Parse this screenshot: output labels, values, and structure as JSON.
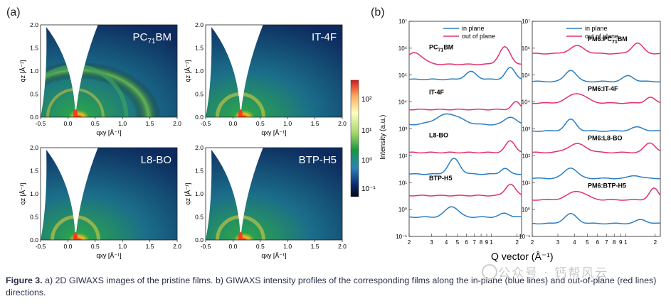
{
  "panel_a": {
    "label": "(a)",
    "images": [
      {
        "sample": "PC71BM",
        "label_html": "PC<sub>71</sub>BM"
      },
      {
        "sample": "IT-4F"
      },
      {
        "sample": "L8-BO"
      },
      {
        "sample": "BTP-H5"
      }
    ],
    "x_ticks": [
      "-0.5",
      "0.0",
      "0.5",
      "1.0",
      "1.5",
      "2.0"
    ],
    "y_ticks": [
      "0.0",
      "0.5",
      "1.0",
      "1.5",
      "2.0"
    ],
    "xlabel": "qxy [Å⁻¹]",
    "ylabel": "qz [Å⁻¹]",
    "colorbar_ticks": [
      "10²",
      "10¹",
      "10⁰",
      "10⁻¹"
    ],
    "colorbar_colors": [
      "#d7191c",
      "#fdae61",
      "#ffffbf",
      "#a6d96a",
      "#1a9641",
      "#2b83ba",
      "#0b2a6f",
      "#050515"
    ]
  },
  "panel_b": {
    "label": "(b)",
    "chart_data": [
      {
        "type": "line",
        "xlabel": "Q vector (Å⁻¹)",
        "ylabel": "Intensity (a.u.)",
        "x_ticks": [
          "2",
          "3",
          "4",
          "5",
          "6",
          "7",
          "8",
          "9",
          "1",
          "2"
        ],
        "y_ticks": [
          "10⁷",
          "10⁶",
          "10⁵",
          "10⁴",
          "10³",
          "10²",
          "10¹",
          "10⁰",
          "10⁻¹"
        ],
        "legend": [
          "in plane",
          "out of plane"
        ],
        "colors": {
          "in_plane": "#2a7ec2",
          "out_of_plane": "#e4306a"
        },
        "samples": [
          "PC71BM",
          "IT-4F",
          "L8-BO",
          "BTP-H5"
        ],
        "sample_labels_html": [
          "PC<tspan dy='3' font-size='8'>71</tspan><tspan dy='-3'>BM</tspan>"
        ]
      },
      {
        "type": "line",
        "x_ticks": [
          "2",
          "3",
          "4",
          "5",
          "6",
          "7",
          "8",
          "9",
          "1",
          "2"
        ],
        "y_ticks": [
          "10⁷",
          "10⁶",
          "10⁵",
          "10⁴",
          "10³",
          "10²",
          "10¹",
          "10⁰",
          "10⁻¹"
        ],
        "legend": [
          "in plane",
          "out of plane"
        ],
        "samples": [
          "PM6:PC71BM",
          "PM6:IT-4F",
          "PM6:L8-BO",
          "PM6:BTP-H5"
        ]
      }
    ]
  },
  "caption": {
    "bold": "Figure 3.",
    "text": " a) 2D GIWAXS images of the pristine films. b) GIWAXS intensity profiles of the corresponding films along the in-plane (blue lines) and out-of-plane (red lines) directions."
  },
  "watermark": "公众号 · 钙帮风云"
}
